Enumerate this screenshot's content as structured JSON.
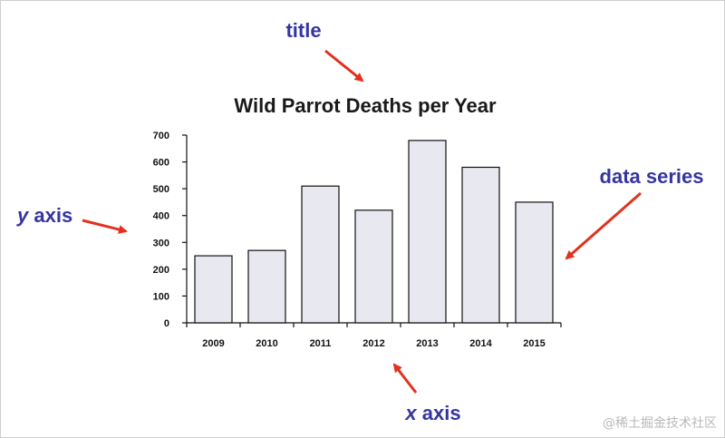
{
  "chart_data": {
    "type": "bar",
    "title": "Wild Parrot Deaths per Year",
    "xlabel": "",
    "ylabel": "",
    "categories": [
      "2009",
      "2010",
      "2011",
      "2012",
      "2013",
      "2014",
      "2015"
    ],
    "values": [
      250,
      270,
      510,
      420,
      680,
      580,
      450
    ],
    "ylim": [
      0,
      700
    ],
    "yticks": [
      0,
      100,
      200,
      300,
      400,
      500,
      600,
      700
    ],
    "grid": false,
    "bar_fill": "#e8e8f0",
    "bar_stroke": "#111111"
  },
  "annotations": {
    "title": "title",
    "y_axis_var": "y",
    "y_axis_word": "axis",
    "x_axis_var": "x",
    "x_axis_word": "axis",
    "data_series": "data series",
    "text_color": "#3535a0",
    "arrow_color": "#e0321e"
  },
  "watermark": "@稀土掘金技术社区"
}
